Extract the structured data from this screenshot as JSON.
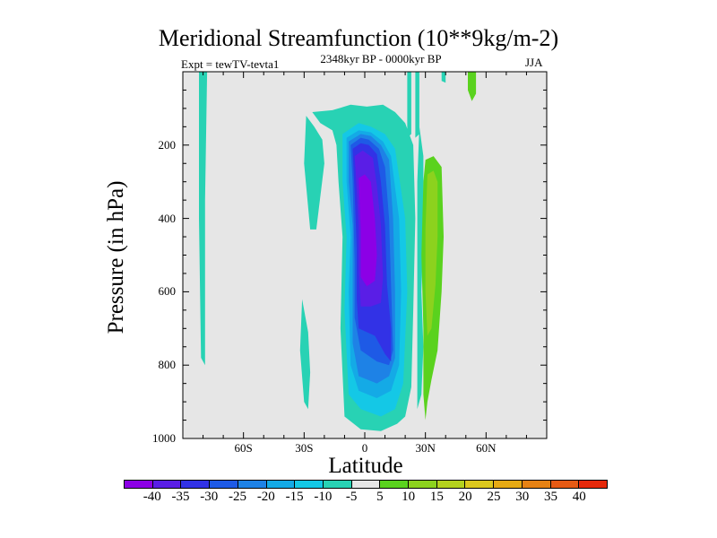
{
  "chart_data": {
    "type": "heatmap",
    "title": "Meridional Streamfunction (10**9kg/m-2)",
    "left_label": "Expt = tewTV-tevta1",
    "center_label": "2348kyr BP - 0000kyr BP",
    "right_label": "JJA",
    "xlabel": "Latitude",
    "ylabel": "Pressure (in hPa)",
    "xlim": [
      -90,
      90
    ],
    "ylim": [
      0,
      1000
    ],
    "y_inverted": true,
    "x_ticks": [
      {
        "value": -60,
        "label": "60S"
      },
      {
        "value": -30,
        "label": "30S"
      },
      {
        "value": 0,
        "label": "0"
      },
      {
        "value": 30,
        "label": "30N"
      },
      {
        "value": 60,
        "label": "60N"
      }
    ],
    "y_ticks": [
      {
        "value": 200,
        "label": "200"
      },
      {
        "value": 400,
        "label": "400"
      },
      {
        "value": 600,
        "label": "600"
      },
      {
        "value": 800,
        "label": "800"
      },
      {
        "value": 1000,
        "label": "1000"
      }
    ],
    "background_color": "#e6e6e6",
    "levels": [
      -40,
      -35,
      -30,
      -25,
      -20,
      -15,
      -10,
      -5,
      5,
      10,
      15,
      20,
      25,
      30,
      35,
      40
    ],
    "level_labels": [
      "-40",
      "-35",
      "-30",
      "-25",
      "-20",
      "-15",
      "-10",
      "-5",
      "5",
      "10",
      "15",
      "20",
      "25",
      "30",
      "35",
      "40"
    ],
    "colors": [
      "#8c00e6",
      "#5a1ee6",
      "#3232e6",
      "#1e5ae6",
      "#1e82e6",
      "#14aae6",
      "#14c8e6",
      "#28d2b4",
      "#e6e6e6",
      "#5ad21e",
      "#8cd21e",
      "#b4d21e",
      "#dcc81e",
      "#e6aa14",
      "#e68214",
      "#e65a14",
      "#e6280a"
    ],
    "regions": [
      {
        "level": "-5 to 0",
        "color": "#28d2b4",
        "points": [
          [
            -82,
            0
          ],
          [
            -78,
            0
          ],
          [
            -79,
            350
          ],
          [
            -79,
            800
          ],
          [
            -81,
            780
          ],
          [
            -82,
            400
          ]
        ]
      },
      {
        "level": "-5 to 0",
        "color": "#28d2b4",
        "points": [
          [
            -29,
            120
          ],
          [
            -25,
            150
          ],
          [
            -21,
            185
          ],
          [
            -20,
            250
          ],
          [
            -22,
            340
          ],
          [
            -24,
            430
          ],
          [
            -27,
            430
          ],
          [
            -30,
            250
          ]
        ]
      },
      {
        "level": "-5 to 0",
        "color": "#28d2b4",
        "points": [
          [
            -31,
            620
          ],
          [
            -28,
            710
          ],
          [
            -27,
            820
          ],
          [
            -28,
            920
          ],
          [
            -30,
            900
          ],
          [
            -32,
            760
          ]
        ]
      },
      {
        "level": "-5 to 0",
        "color": "#28d2b4",
        "points": [
          [
            -26,
            110
          ],
          [
            -16,
            105
          ],
          [
            -7,
            90
          ],
          [
            1,
            95
          ],
          [
            9,
            90
          ],
          [
            15,
            110
          ],
          [
            20,
            140
          ],
          [
            24,
            200
          ],
          [
            25,
            400
          ],
          [
            24,
            650
          ],
          [
            23,
            860
          ],
          [
            20,
            940
          ],
          [
            16,
            960
          ],
          [
            8,
            980
          ],
          [
            -2,
            975
          ],
          [
            -10,
            940
          ],
          [
            -12,
            700
          ],
          [
            -11,
            450
          ],
          [
            -13,
            300
          ],
          [
            -14,
            200
          ],
          [
            -16,
            160
          ],
          [
            -22,
            140
          ]
        ]
      },
      {
        "level": "-5 to 0",
        "color": "#28d2b4",
        "points": [
          [
            21,
            0
          ],
          [
            23,
            0
          ],
          [
            23,
            170
          ],
          [
            21,
            180
          ]
        ]
      },
      {
        "level": "-5 to 0",
        "color": "#28d2b4",
        "points": [
          [
            25,
            0
          ],
          [
            27,
            0
          ],
          [
            27,
            170
          ],
          [
            25,
            180
          ]
        ]
      },
      {
        "level": "-5 to 0",
        "color": "#28d2b4",
        "points": [
          [
            38,
            0
          ],
          [
            40,
            0
          ],
          [
            40,
            30
          ],
          [
            38,
            25
          ]
        ]
      },
      {
        "level": "-5 to 0",
        "color": "#28d2b4",
        "points": [
          [
            27,
            150
          ],
          [
            29,
            230
          ],
          [
            29,
            430
          ],
          [
            28,
            600
          ],
          [
            29,
            750
          ],
          [
            28,
            880
          ],
          [
            26,
            920
          ],
          [
            26,
            600
          ],
          [
            26,
            300
          ]
        ]
      },
      {
        "level": "-10 to -5",
        "color": "#14c8e6",
        "points": [
          [
            -11,
            170
          ],
          [
            -3,
            140
          ],
          [
            3,
            150
          ],
          [
            10,
            170
          ],
          [
            15,
            210
          ],
          [
            20,
            400
          ],
          [
            21,
            600
          ],
          [
            19,
            850
          ],
          [
            15,
            920
          ],
          [
            8,
            940
          ],
          [
            -2,
            920
          ],
          [
            -8,
            880
          ],
          [
            -10,
            650
          ],
          [
            -9,
            450
          ],
          [
            -11,
            300
          ]
        ]
      },
      {
        "level": "-15 to -10",
        "color": "#14aae6",
        "points": [
          [
            -9,
            180
          ],
          [
            -3,
            160
          ],
          [
            3,
            165
          ],
          [
            9,
            190
          ],
          [
            13,
            230
          ],
          [
            17,
            400
          ],
          [
            18,
            600
          ],
          [
            17,
            800
          ],
          [
            13,
            870
          ],
          [
            6,
            890
          ],
          [
            -3,
            870
          ],
          [
            -7,
            800
          ],
          [
            -8,
            600
          ],
          [
            -7,
            450
          ],
          [
            -9,
            300
          ]
        ]
      },
      {
        "level": "-20 to -15",
        "color": "#1e82e6",
        "points": [
          [
            -8,
            190
          ],
          [
            -2,
            170
          ],
          [
            3,
            175
          ],
          [
            8,
            200
          ],
          [
            12,
            240
          ],
          [
            14,
            400
          ],
          [
            15,
            600
          ],
          [
            15,
            780
          ],
          [
            12,
            830
          ],
          [
            6,
            850
          ],
          [
            -3,
            830
          ],
          [
            -6,
            740
          ],
          [
            -6,
            550
          ],
          [
            -6,
            420
          ],
          [
            -8,
            300
          ]
        ]
      },
      {
        "level": "-25 to -20",
        "color": "#1e5ae6",
        "points": [
          [
            -7,
            200
          ],
          [
            -2,
            180
          ],
          [
            2,
            185
          ],
          [
            7,
            210
          ],
          [
            10,
            260
          ],
          [
            12,
            400
          ],
          [
            13,
            580
          ],
          [
            14,
            760
          ],
          [
            12,
            800
          ],
          [
            6,
            790
          ],
          [
            -2,
            760
          ],
          [
            -5,
            670
          ],
          [
            -5,
            520
          ],
          [
            -6,
            300
          ]
        ]
      },
      {
        "level": "-30 to -25",
        "color": "#3232e6",
        "points": [
          [
            -6,
            210
          ],
          [
            -2,
            195
          ],
          [
            2,
            200
          ],
          [
            6,
            225
          ],
          [
            8,
            300
          ],
          [
            10,
            420
          ],
          [
            11,
            580
          ],
          [
            13,
            700
          ],
          [
            13,
            790
          ],
          [
            10,
            770
          ],
          [
            5,
            720
          ],
          [
            -3,
            700
          ],
          [
            -4,
            620
          ],
          [
            -4,
            480
          ],
          [
            -5,
            330
          ]
        ]
      },
      {
        "level": "-35 to -30",
        "color": "#5a1ee6",
        "points": [
          [
            -5,
            230
          ],
          [
            -1,
            215
          ],
          [
            4,
            235
          ],
          [
            6,
            310
          ],
          [
            8,
            420
          ],
          [
            9,
            560
          ],
          [
            8,
            630
          ],
          [
            3,
            640
          ],
          [
            -2,
            640
          ],
          [
            -3,
            540
          ],
          [
            -3,
            420
          ],
          [
            -4,
            320
          ]
        ]
      },
      {
        "level": "-40 to -35",
        "color": "#8c00e6",
        "points": [
          [
            -3,
            290
          ],
          [
            0,
            280
          ],
          [
            3,
            300
          ],
          [
            5,
            400
          ],
          [
            6,
            500
          ],
          [
            5,
            570
          ],
          [
            1,
            585
          ],
          [
            -2,
            560
          ],
          [
            -2,
            430
          ]
        ]
      },
      {
        "level": "5 to 10",
        "color": "#5ad21e",
        "points": [
          [
            30,
            240
          ],
          [
            34,
            230
          ],
          [
            38,
            260
          ],
          [
            39,
            450
          ],
          [
            38,
            600
          ],
          [
            36,
            760
          ],
          [
            33,
            840
          ],
          [
            31,
            900
          ],
          [
            30,
            950
          ],
          [
            29,
            880
          ],
          [
            29,
            700
          ],
          [
            28,
            500
          ],
          [
            29,
            300
          ]
        ]
      },
      {
        "level": "5 to 10",
        "color": "#5ad21e",
        "points": [
          [
            51,
            0
          ],
          [
            55,
            0
          ],
          [
            55,
            60
          ],
          [
            53,
            80
          ],
          [
            51,
            50
          ]
        ]
      },
      {
        "level": "10 to 15",
        "color": "#8cd21e",
        "points": [
          [
            31,
            280
          ],
          [
            34,
            270
          ],
          [
            36,
            300
          ],
          [
            36,
            450
          ],
          [
            35,
            580
          ],
          [
            33,
            700
          ],
          [
            31,
            720
          ],
          [
            30,
            600
          ],
          [
            30,
            430
          ]
        ]
      }
    ]
  }
}
